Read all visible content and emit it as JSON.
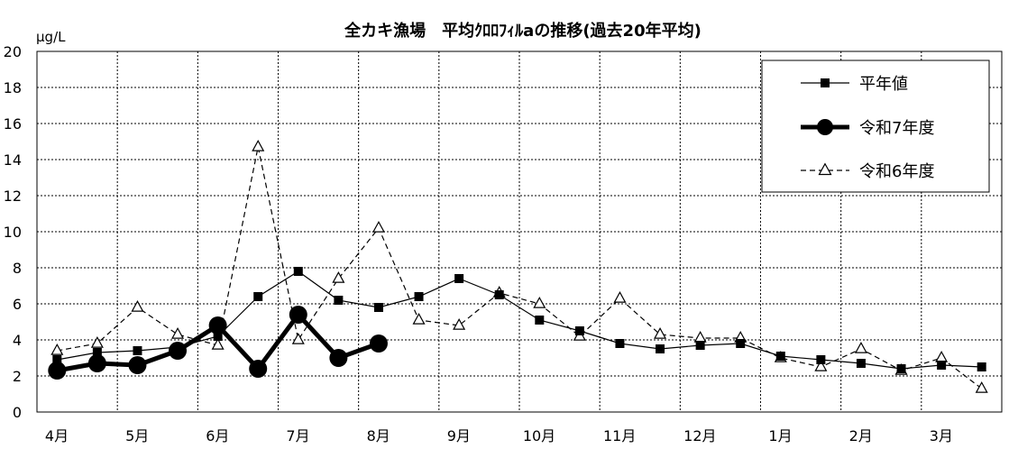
{
  "chart_data": {
    "type": "line",
    "title": "全カキ漁場　平均ｸﾛﾛﾌｨﾙaの推移(過去20年平均)",
    "ylabel": "μg/L",
    "ylim": [
      0,
      20
    ],
    "yticks": [
      "0",
      "2",
      "4",
      "6",
      "8",
      "10",
      "12",
      "14",
      "16",
      "18",
      "20"
    ],
    "xticks": [
      "4月",
      "5月",
      "6月",
      "7月",
      "8月",
      "9月",
      "10月",
      "11月",
      "12月",
      "1月",
      "2月",
      "3月"
    ],
    "grid": true,
    "legend_position": "top-right",
    "series": [
      {
        "name": "平年値",
        "style": "solid-square",
        "color": "#000000",
        "values": [
          2.9,
          3.3,
          3.4,
          3.6,
          4.2,
          6.4,
          7.8,
          6.2,
          5.8,
          6.4,
          7.4,
          6.5,
          5.1,
          4.5,
          3.8,
          3.5,
          3.7,
          3.8,
          3.1,
          2.9,
          2.7,
          2.4,
          2.6,
          2.5
        ]
      },
      {
        "name": "令和7年度",
        "style": "bold-circle",
        "color": "#000000",
        "values": [
          2.3,
          2.7,
          2.6,
          3.4,
          4.8,
          2.4,
          5.4,
          3.0,
          3.8
        ]
      },
      {
        "name": "令和6年度",
        "style": "dashed-triangle",
        "color": "#000000",
        "values": [
          3.4,
          3.8,
          5.8,
          4.3,
          3.7,
          14.7,
          4.0,
          7.4,
          10.2,
          5.1,
          4.8,
          6.6,
          6.0,
          4.2,
          6.3,
          4.3,
          4.1,
          4.1,
          3.0,
          2.5,
          3.5,
          2.3,
          3.0,
          1.3
        ]
      }
    ]
  }
}
